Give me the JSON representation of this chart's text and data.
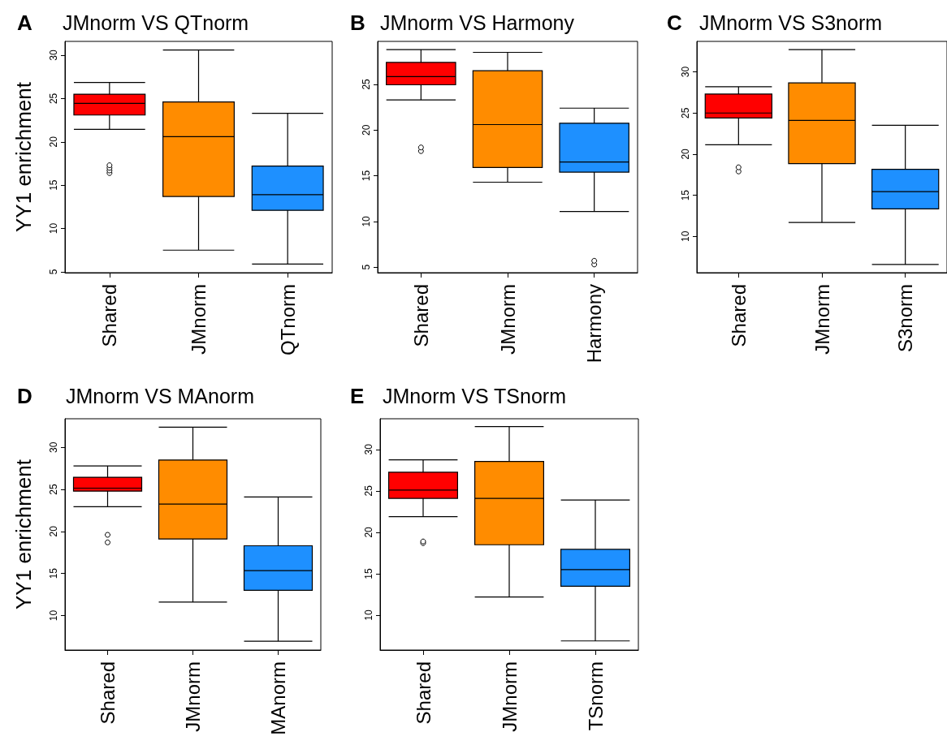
{
  "chart_data": [
    {
      "type": "box",
      "title": "JMnorm VS QTnorm",
      "annotations": [
        "A"
      ],
      "ylabel": "YY1 enrichment",
      "categories": [
        "Shared",
        "JMnorm",
        "QTnorm"
      ],
      "colors": [
        "#ff0000",
        "#ff8c00",
        "#1e90ff"
      ],
      "ylim": [
        4.9,
        31.6
      ],
      "yticks": [
        5,
        10,
        15,
        20,
        25,
        30
      ],
      "grid": false,
      "boxes": [
        {
          "low": 21.45,
          "q1": 23.1,
          "median": 24.45,
          "q3": 25.5,
          "high": 26.85,
          "outliers": [
            16.4,
            16.7,
            17.0,
            17.3
          ]
        },
        {
          "low": 7.5,
          "q1": 13.7,
          "median": 20.6,
          "q3": 24.6,
          "high": 30.6
        },
        {
          "low": 5.9,
          "q1": 12.1,
          "median": 13.9,
          "q3": 17.2,
          "high": 23.3
        }
      ]
    },
    {
      "type": "box",
      "title": "JMnorm VS Harmony",
      "annotations": [
        "B"
      ],
      "categories": [
        "Shared",
        "JMnorm",
        "Harmony"
      ],
      "colors": [
        "#ff0000",
        "#ff8c00",
        "#1e90ff"
      ],
      "ylim": [
        4.4,
        29.7
      ],
      "yticks": [
        5,
        10,
        15,
        20,
        25
      ],
      "grid": false,
      "boxes": [
        {
          "low": 23.3,
          "q1": 24.95,
          "median": 25.85,
          "q3": 27.4,
          "high": 28.8,
          "outliers": [
            17.7,
            18.1
          ]
        },
        {
          "low": 14.3,
          "q1": 15.9,
          "median": 20.6,
          "q3": 26.5,
          "high": 28.5
        },
        {
          "low": 11.1,
          "q1": 15.4,
          "median": 16.5,
          "q3": 20.75,
          "high": 22.4,
          "outliers": [
            5.3,
            5.7
          ]
        }
      ]
    },
    {
      "type": "box",
      "title": "JMnorm VS S3norm",
      "annotations": [
        "C"
      ],
      "categories": [
        "Shared",
        "JMnorm",
        "S3norm"
      ],
      "colors": [
        "#ff0000",
        "#ff8c00",
        "#1e90ff"
      ],
      "ylim": [
        5.6,
        33.7
      ],
      "yticks": [
        10,
        15,
        20,
        25,
        30
      ],
      "grid": false,
      "boxes": [
        {
          "low": 21.15,
          "q1": 24.4,
          "median": 25.0,
          "q3": 27.3,
          "high": 28.2,
          "outliers": [
            17.9,
            18.4
          ]
        },
        {
          "low": 11.7,
          "q1": 18.85,
          "median": 24.1,
          "q3": 28.65,
          "high": 32.7
        },
        {
          "low": 6.6,
          "q1": 13.35,
          "median": 15.45,
          "q3": 18.15,
          "high": 23.5
        }
      ]
    },
    {
      "type": "box",
      "title": "JMnorm VS MAnorm",
      "annotations": [
        "D"
      ],
      "ylabel": "YY1 enrichment",
      "categories": [
        "Shared",
        "JMnorm",
        "MAnorm"
      ],
      "colors": [
        "#ff0000",
        "#ff8c00",
        "#1e90ff"
      ],
      "ylim": [
        5.9,
        33.4
      ],
      "yticks": [
        10,
        15,
        20,
        25,
        30
      ],
      "grid": false,
      "boxes": [
        {
          "low": 22.95,
          "q1": 24.8,
          "median": 25.15,
          "q3": 26.45,
          "high": 27.8,
          "outliers": [
            18.7,
            19.6
          ]
        },
        {
          "low": 11.6,
          "q1": 19.1,
          "median": 23.25,
          "q3": 28.5,
          "high": 32.4
        },
        {
          "low": 6.95,
          "q1": 13.0,
          "median": 15.35,
          "q3": 18.3,
          "high": 24.1
        }
      ]
    },
    {
      "type": "box",
      "title": "JMnorm VS TSnorm",
      "annotations": [
        "E"
      ],
      "categories": [
        "Shared",
        "JMnorm",
        "TSnorm"
      ],
      "colors": [
        "#ff0000",
        "#ff8c00",
        "#1e90ff"
      ],
      "ylim": [
        5.8,
        33.7
      ],
      "yticks": [
        10,
        15,
        20,
        25,
        30
      ],
      "grid": false,
      "boxes": [
        {
          "low": 21.9,
          "q1": 24.1,
          "median": 25.1,
          "q3": 27.25,
          "high": 28.75,
          "outliers": [
            18.7,
            18.9
          ]
        },
        {
          "low": 12.2,
          "q1": 18.5,
          "median": 24.1,
          "q3": 28.55,
          "high": 32.75
        },
        {
          "low": 6.9,
          "q1": 13.5,
          "median": 15.5,
          "q3": 17.95,
          "high": 23.9
        }
      ]
    }
  ]
}
